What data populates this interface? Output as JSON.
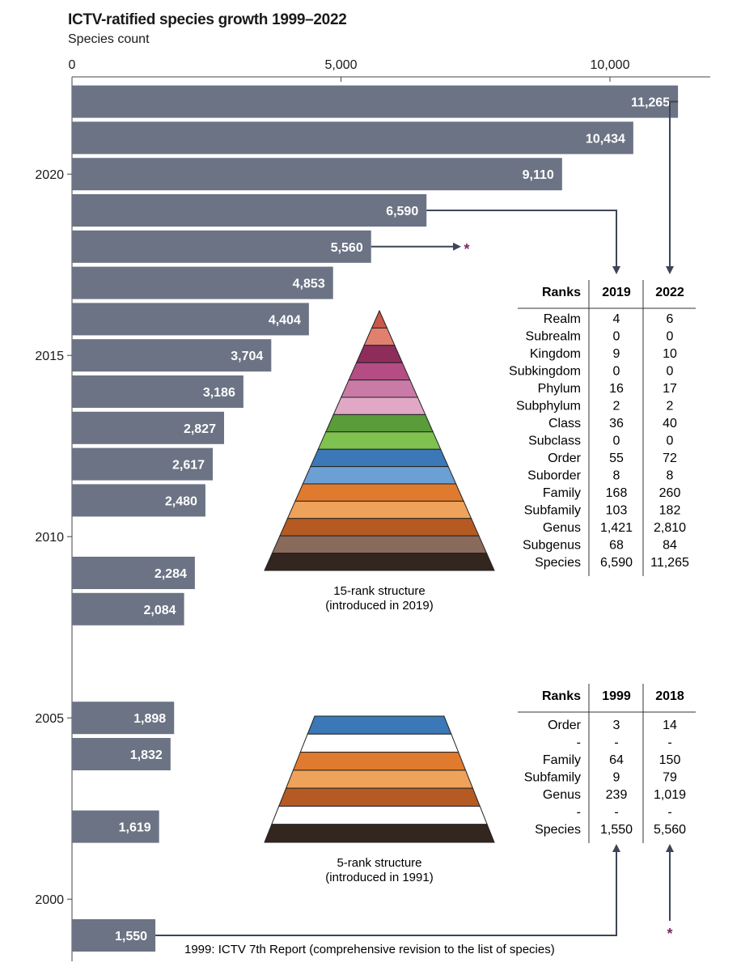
{
  "title": "ICTV-ratified species growth 1999–2022",
  "subtitle": "Species count",
  "colors": {
    "bar": "#6b7384",
    "bar_label": "#ffffff",
    "axis": "#444444",
    "arrow": "#3d4657",
    "asterisk": "#7a2a6a"
  },
  "chart_data": {
    "type": "bar",
    "orientation": "horizontal",
    "title": "ICTV-ratified species growth 1999–2022",
    "xlabel": "Species count",
    "xlim": [
      0,
      11800
    ],
    "x_ticks": [
      0,
      5000,
      10000
    ],
    "x_tick_labels": [
      "0",
      "5,000",
      "10,000"
    ],
    "y_ticks": [
      2000,
      2005,
      2010,
      2015,
      2020
    ],
    "y_tick_labels": [
      "2000",
      "2005",
      "2010",
      "2015",
      "2020"
    ],
    "grid": false,
    "bars": [
      {
        "year": 2022,
        "value": 11265,
        "label": "11,265"
      },
      {
        "year": 2021,
        "value": 10434,
        "label": "10,434"
      },
      {
        "year": 2020,
        "value": 9110,
        "label": "9,110"
      },
      {
        "year": 2019,
        "value": 6590,
        "label": "6,590"
      },
      {
        "year": 2018,
        "value": 5560,
        "label": "5,560"
      },
      {
        "year": 2017,
        "value": 4853,
        "label": "4,853"
      },
      {
        "year": 2016,
        "value": 4404,
        "label": "4,404"
      },
      {
        "year": 2015,
        "value": 3704,
        "label": "3,704"
      },
      {
        "year": 2014,
        "value": 3186,
        "label": "3,186"
      },
      {
        "year": 2013,
        "value": 2827,
        "label": "2,827"
      },
      {
        "year": 2012,
        "value": 2617,
        "label": "2,617"
      },
      {
        "year": 2011,
        "value": 2480,
        "label": "2,480"
      },
      {
        "year": 2009,
        "value": 2284,
        "label": "2,284"
      },
      {
        "year": 2008,
        "value": 2084,
        "label": "2,084"
      },
      {
        "year": 2005,
        "value": 1898,
        "label": "1,898"
      },
      {
        "year": 2004,
        "value": 1832,
        "label": "1,832"
      },
      {
        "year": 2002,
        "value": 1619,
        "label": "1,619"
      },
      {
        "year": 1999,
        "value": 1550,
        "label": "1,550"
      }
    ]
  },
  "annotations": {
    "asterisk": "*",
    "report_note": "1999: ICTV 7th Report (comprehensive revision to the list of species)"
  },
  "structure_15": {
    "caption_line1": "15-rank structure",
    "caption_line2": "(introduced in 2019)",
    "band_colors": [
      "#c9584a",
      "#e28070",
      "#8e2d5a",
      "#b44d84",
      "#c97aa6",
      "#e0a8c5",
      "#5a9b3a",
      "#7fc24f",
      "#3a78b8",
      "#6c9fd3",
      "#e07a2e",
      "#eea25a",
      "#b55a22",
      "#8a6a5a",
      "#33261f"
    ]
  },
  "structure_5": {
    "caption_line1": "5-rank structure",
    "caption_line2": "(introduced in 1991)",
    "band_colors": [
      "#3a78b8",
      "#ffffff",
      "#e07a2e",
      "#eea25a",
      "#b55a22",
      "#ffffff",
      "#33261f"
    ]
  },
  "table_15": {
    "headers": [
      "Ranks",
      "2019",
      "2022"
    ],
    "rows": [
      [
        "Realm",
        "4",
        "6"
      ],
      [
        "Subrealm",
        "0",
        "0"
      ],
      [
        "Kingdom",
        "9",
        "10"
      ],
      [
        "Subkingdom",
        "0",
        "0"
      ],
      [
        "Phylum",
        "16",
        "17"
      ],
      [
        "Subphylum",
        "2",
        "2"
      ],
      [
        "Class",
        "36",
        "40"
      ],
      [
        "Subclass",
        "0",
        "0"
      ],
      [
        "Order",
        "55",
        "72"
      ],
      [
        "Suborder",
        "8",
        "8"
      ],
      [
        "Family",
        "168",
        "260"
      ],
      [
        "Subfamily",
        "103",
        "182"
      ],
      [
        "Genus",
        "1,421",
        "2,810"
      ],
      [
        "Subgenus",
        "68",
        "84"
      ],
      [
        "Species",
        "6,590",
        "11,265"
      ]
    ]
  },
  "table_5": {
    "headers": [
      "Ranks",
      "1999",
      "2018"
    ],
    "rows": [
      [
        "Order",
        "3",
        "14"
      ],
      [
        "-",
        "-",
        "-"
      ],
      [
        "Family",
        "64",
        "150"
      ],
      [
        "Subfamily",
        "9",
        "79"
      ],
      [
        "Genus",
        "239",
        "1,019"
      ],
      [
        "-",
        "-",
        "-"
      ],
      [
        "Species",
        "1,550",
        "5,560"
      ]
    ]
  }
}
